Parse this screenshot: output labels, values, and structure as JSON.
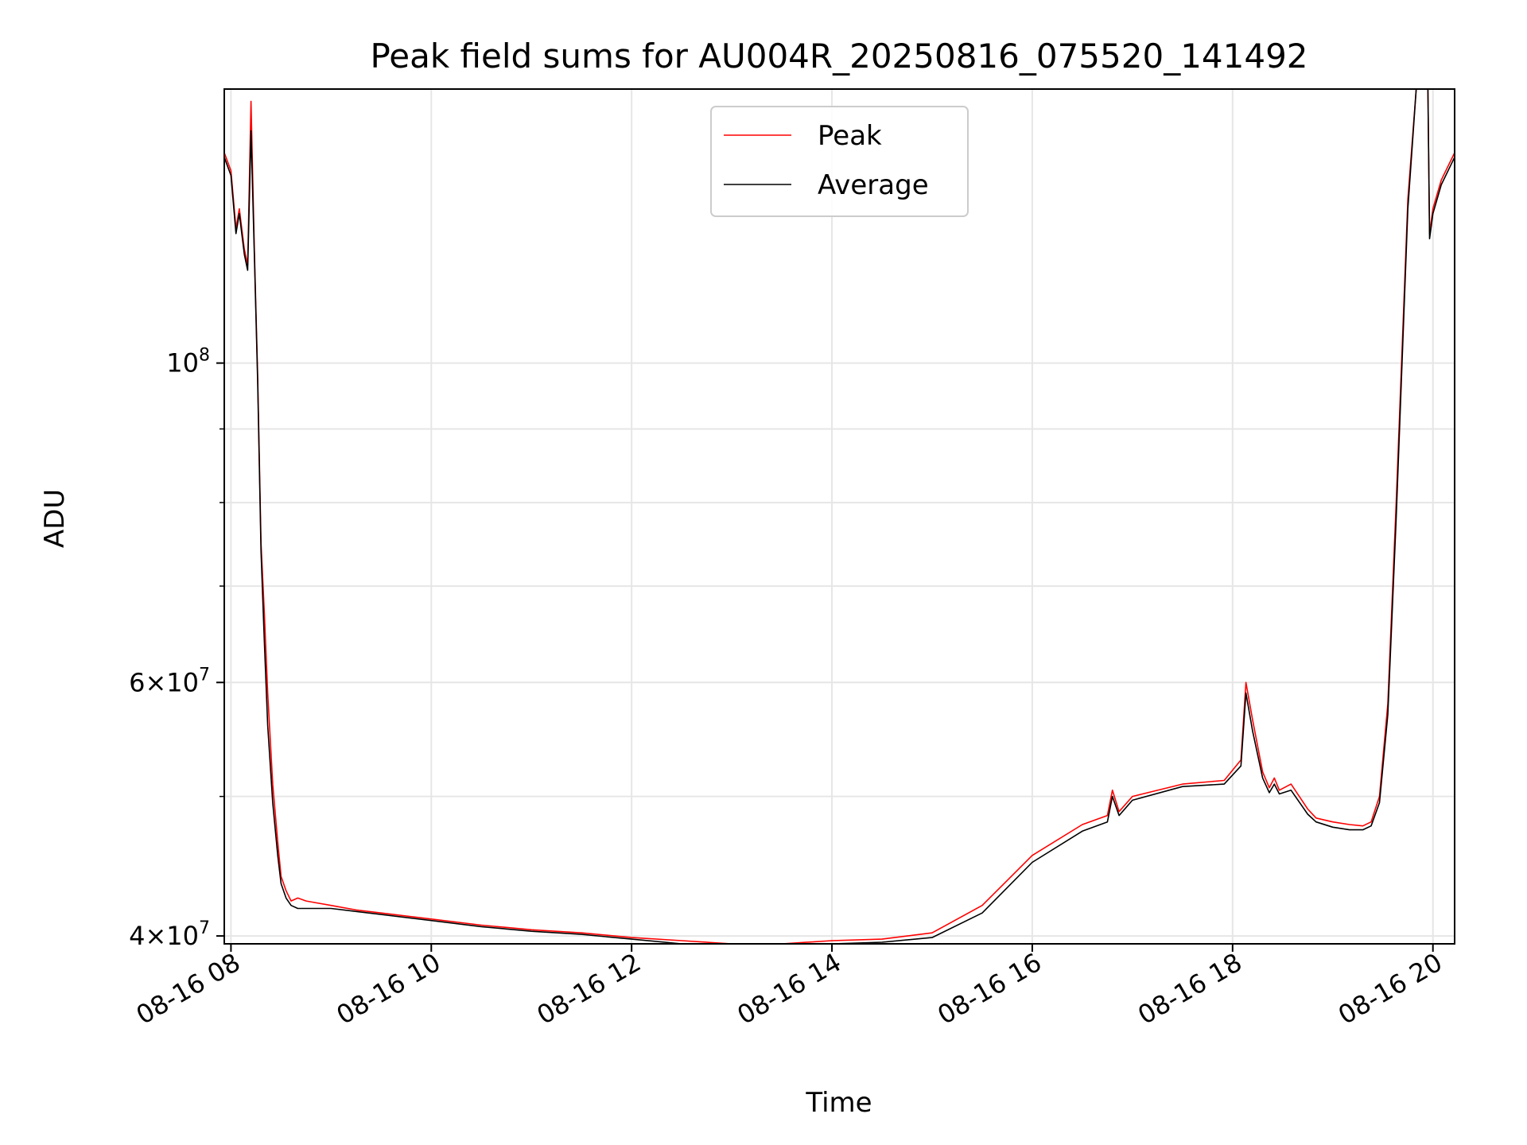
{
  "chart_data": {
    "type": "line",
    "title": "Peak field sums for AU004R_20250816_075520_141492",
    "xlabel": "Time",
    "ylabel": "ADU",
    "x_scale": "time",
    "y_scale": "log",
    "xlim": [
      "08-16 07:56",
      "08-16 20:13"
    ],
    "ylim": [
      39500000,
      155000000
    ],
    "grid": true,
    "legend_position": "top-center",
    "x_ticks": [
      {
        "value": "08-16 08",
        "label": "08-16 08"
      },
      {
        "value": "08-16 10",
        "label": "08-16 10"
      },
      {
        "value": "08-16 12",
        "label": "08-16 12"
      },
      {
        "value": "08-16 14",
        "label": "08-16 14"
      },
      {
        "value": "08-16 16",
        "label": "08-16 16"
      },
      {
        "value": "08-16 18",
        "label": "08-16 18"
      },
      {
        "value": "08-16 20",
        "label": "08-16 20"
      }
    ],
    "y_major_ticks": [
      {
        "value": 40000000,
        "mantissa": "4",
        "exponent": "7"
      },
      {
        "value": 60000000,
        "mantissa": "6",
        "exponent": "7"
      },
      {
        "value": 100000000,
        "mantissa": "",
        "exponent": "8"
      }
    ],
    "y_minor_ticks": [
      50000000,
      70000000,
      80000000,
      90000000
    ],
    "series": [
      {
        "name": "Peak",
        "color": "#ff0000",
        "x": [
          "08-16 07:56",
          "08-16 08:00",
          "08-16 08:03",
          "08-16 08:05",
          "08-16 08:08",
          "08-16 08:10",
          "08-16 08:12",
          "08-16 08:14",
          "08-16 08:16",
          "08-16 08:18",
          "08-16 08:20",
          "08-16 08:22",
          "08-16 08:25",
          "08-16 08:28",
          "08-16 08:30",
          "08-16 08:33",
          "08-16 08:36",
          "08-16 08:40",
          "08-16 08:45",
          "08-16 08:50",
          "08-16 09:00",
          "08-16 09:15",
          "08-16 09:30",
          "08-16 10:00",
          "08-16 10:30",
          "08-16 11:00",
          "08-16 11:30",
          "08-16 12:00",
          "08-16 12:30",
          "08-16 13:00",
          "08-16 13:30",
          "08-16 14:00",
          "08-16 14:30",
          "08-16 15:00",
          "08-16 15:30",
          "08-16 16:00",
          "08-16 16:30",
          "08-16 16:45",
          "08-16 16:48",
          "08-16 16:52",
          "08-16 17:00",
          "08-16 17:30",
          "08-16 17:55",
          "08-16 18:05",
          "08-16 18:08",
          "08-16 18:12",
          "08-16 18:18",
          "08-16 18:22",
          "08-16 18:25",
          "08-16 18:28",
          "08-16 18:35",
          "08-16 18:45",
          "08-16 18:50",
          "08-16 19:00",
          "08-16 19:10",
          "08-16 19:18",
          "08-16 19:23",
          "08-16 19:28",
          "08-16 19:33",
          "08-16 19:38",
          "08-16 19:45",
          "08-16 19:50",
          "08-16 19:53",
          "08-16 19:57",
          "08-16 19:58",
          "08-16 20:00",
          "08-16 20:05",
          "08-16 20:13"
        ],
        "y": [
          140000000,
          136000000,
          124000000,
          128000000,
          120000000,
          117000000,
          152000000,
          120000000,
          98000000,
          75000000,
          67000000,
          59000000,
          51000000,
          46500000,
          44000000,
          43000000,
          42300000,
          42500000,
          42300000,
          42200000,
          42000000,
          41700000,
          41500000,
          41100000,
          40700000,
          40400000,
          40200000,
          39900000,
          39700000,
          39500000,
          39500000,
          39700000,
          39800000,
          40200000,
          42000000,
          45500000,
          47800000,
          48500000,
          50500000,
          48800000,
          50000000,
          51000000,
          51300000,
          53000000,
          60000000,
          56500000,
          52000000,
          50700000,
          51500000,
          50500000,
          51000000,
          49000000,
          48300000,
          48000000,
          47800000,
          47700000,
          48000000,
          50000000,
          58000000,
          80000000,
          130000000,
          155000000,
          155000000,
          155000000,
          123000000,
          128000000,
          134000000,
          140000000
        ]
      },
      {
        "name": "Average",
        "color": "#000000",
        "x": [
          "08-16 07:56",
          "08-16 08:00",
          "08-16 08:03",
          "08-16 08:05",
          "08-16 08:08",
          "08-16 08:10",
          "08-16 08:12",
          "08-16 08:14",
          "08-16 08:16",
          "08-16 08:18",
          "08-16 08:20",
          "08-16 08:22",
          "08-16 08:25",
          "08-16 08:28",
          "08-16 08:30",
          "08-16 08:33",
          "08-16 08:36",
          "08-16 08:40",
          "08-16 08:45",
          "08-16 08:50",
          "08-16 09:00",
          "08-16 09:15",
          "08-16 09:30",
          "08-16 10:00",
          "08-16 10:30",
          "08-16 11:00",
          "08-16 11:30",
          "08-16 12:00",
          "08-16 12:30",
          "08-16 13:00",
          "08-16 13:30",
          "08-16 14:00",
          "08-16 14:30",
          "08-16 15:00",
          "08-16 15:30",
          "08-16 16:00",
          "08-16 16:30",
          "08-16 16:45",
          "08-16 16:48",
          "08-16 16:52",
          "08-16 17:00",
          "08-16 17:30",
          "08-16 17:55",
          "08-16 18:05",
          "08-16 18:08",
          "08-16 18:12",
          "08-16 18:18",
          "08-16 18:22",
          "08-16 18:25",
          "08-16 18:28",
          "08-16 18:35",
          "08-16 18:45",
          "08-16 18:50",
          "08-16 19:00",
          "08-16 19:10",
          "08-16 19:18",
          "08-16 19:23",
          "08-16 19:28",
          "08-16 19:33",
          "08-16 19:38",
          "08-16 19:45",
          "08-16 19:50",
          "08-16 19:53",
          "08-16 19:57",
          "08-16 19:58",
          "08-16 20:00",
          "08-16 20:05",
          "08-16 20:13"
        ],
        "y": [
          139000000,
          135000000,
          123000000,
          127000000,
          119000000,
          116000000,
          145000000,
          119000000,
          97000000,
          74000000,
          64000000,
          56000000,
          49500000,
          45500000,
          43500000,
          42500000,
          42000000,
          41800000,
          41800000,
          41800000,
          41800000,
          41600000,
          41400000,
          41000000,
          40600000,
          40300000,
          40100000,
          39800000,
          39500000,
          39400000,
          39300000,
          39500000,
          39600000,
          39900000,
          41500000,
          45000000,
          47300000,
          48000000,
          50000000,
          48500000,
          49700000,
          50800000,
          51000000,
          52500000,
          59000000,
          55500000,
          51500000,
          50300000,
          51000000,
          50200000,
          50500000,
          48600000,
          48000000,
          47600000,
          47400000,
          47400000,
          47700000,
          49500000,
          57000000,
          78000000,
          128000000,
          155000000,
          155000000,
          155000000,
          122000000,
          127000000,
          133000000,
          139000000
        ]
      }
    ]
  }
}
